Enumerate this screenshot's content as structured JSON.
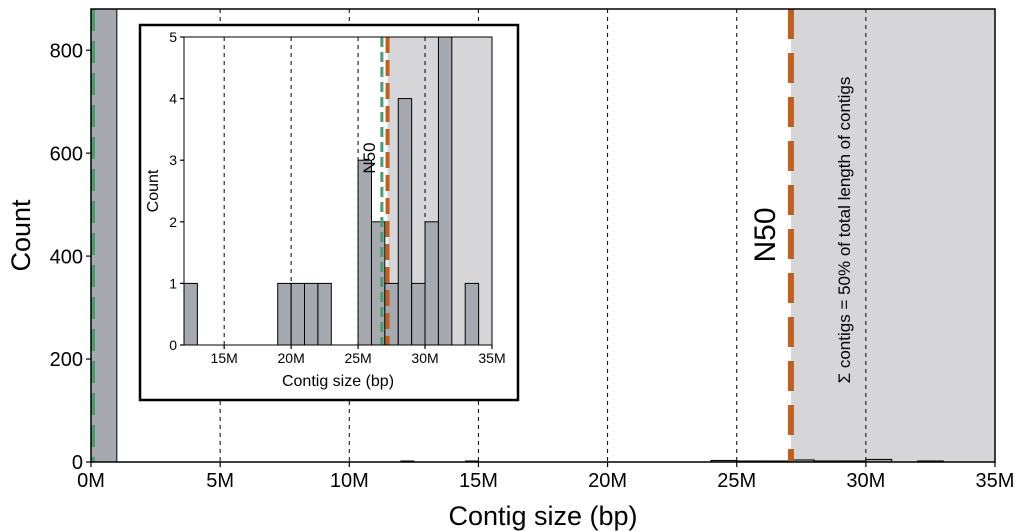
{
  "chart_data": [
    {
      "type": "bar",
      "role": "main",
      "xlabel": "Contig size (bp)",
      "ylabel": "Count",
      "xlim": [
        0,
        35000000
      ],
      "ylim": [
        0,
        880
      ],
      "xticks": [
        0,
        5000000,
        10000000,
        15000000,
        20000000,
        25000000,
        30000000,
        35000000
      ],
      "xticklabels": [
        "0M",
        "5M",
        "10M",
        "15M",
        "20M",
        "25M",
        "30M",
        "35M"
      ],
      "yticks": [
        0,
        200,
        400,
        600,
        800
      ],
      "yticklabels": [
        "0",
        "200",
        "400",
        "600",
        "800"
      ],
      "gridlines_x": [
        5000000,
        10000000,
        15000000,
        20000000,
        25000000,
        30000000
      ],
      "bins": [
        {
          "x0": 0,
          "x1": 1000000,
          "count": 880
        },
        {
          "x0": 12000000,
          "x1": 12500000,
          "count": 1
        },
        {
          "x0": 14500000,
          "x1": 15000000,
          "count": 1
        },
        {
          "x0": 24000000,
          "x1": 25000000,
          "count": 3
        },
        {
          "x0": 25000000,
          "x1": 26000000,
          "count": 2
        },
        {
          "x0": 26000000,
          "x1": 27000000,
          "count": 1
        },
        {
          "x0": 27000000,
          "x1": 28000000,
          "count": 4
        },
        {
          "x0": 28000000,
          "x1": 29000000,
          "count": 1
        },
        {
          "x0": 29000000,
          "x1": 30000000,
          "count": 2
        },
        {
          "x0": 30000000,
          "x1": 31000000,
          "count": 5
        },
        {
          "x0": 32000000,
          "x1": 33000000,
          "count": 1
        }
      ],
      "n50_value": 27100000,
      "n50_label": "N50",
      "n50_color": "#c0601e",
      "green_line_value": 0,
      "green_color": "#4a9e6e",
      "shade_from": 27100000,
      "shade_color": "#d6d6d8",
      "bar_color": "#a7a9b0",
      "annotation": "Σ contigs = 50% of total length of contigs"
    },
    {
      "type": "bar",
      "role": "inset",
      "xlabel": "Contig size (bp)",
      "ylabel": "Count",
      "xlim": [
        12000000,
        35000000
      ],
      "ylim": [
        0,
        5
      ],
      "xticks": [
        15000000,
        20000000,
        25000000,
        30000000,
        35000000
      ],
      "xticklabels": [
        "15M",
        "20M",
        "25M",
        "30M",
        "35M"
      ],
      "yticks": [
        0,
        1,
        2,
        3,
        4,
        5
      ],
      "yticklabels": [
        "0",
        "1",
        "2",
        "3",
        "4",
        "5"
      ],
      "gridlines_x": [
        15000000,
        20000000,
        25000000,
        30000000
      ],
      "bins": [
        {
          "x0": 12000000,
          "x1": 13000000,
          "count": 1
        },
        {
          "x0": 19000000,
          "x1": 20000000,
          "count": 1
        },
        {
          "x0": 20000000,
          "x1": 21000000,
          "count": 1
        },
        {
          "x0": 21000000,
          "x1": 22000000,
          "count": 1
        },
        {
          "x0": 22000000,
          "x1": 23000000,
          "count": 1
        },
        {
          "x0": 25000000,
          "x1": 26000000,
          "count": 3
        },
        {
          "x0": 26000000,
          "x1": 27000000,
          "count": 2
        },
        {
          "x0": 27000000,
          "x1": 28000000,
          "count": 1
        },
        {
          "x0": 28000000,
          "x1": 29000000,
          "count": 4
        },
        {
          "x0": 29000000,
          "x1": 30000000,
          "count": 1
        },
        {
          "x0": 30000000,
          "x1": 31000000,
          "count": 2
        },
        {
          "x0": 31000000,
          "x1": 32000000,
          "count": 5
        },
        {
          "x0": 33000000,
          "x1": 34000000,
          "count": 1
        }
      ],
      "n50_value": 27200000,
      "n50_label": "N50",
      "n50_color": "#c0601e",
      "green_line_value": 27000000,
      "green_color": "#4a9e6e",
      "shade_from": 27200000,
      "shade_color": "#d6d6d8",
      "bar_color": "#a7a9b0"
    }
  ]
}
